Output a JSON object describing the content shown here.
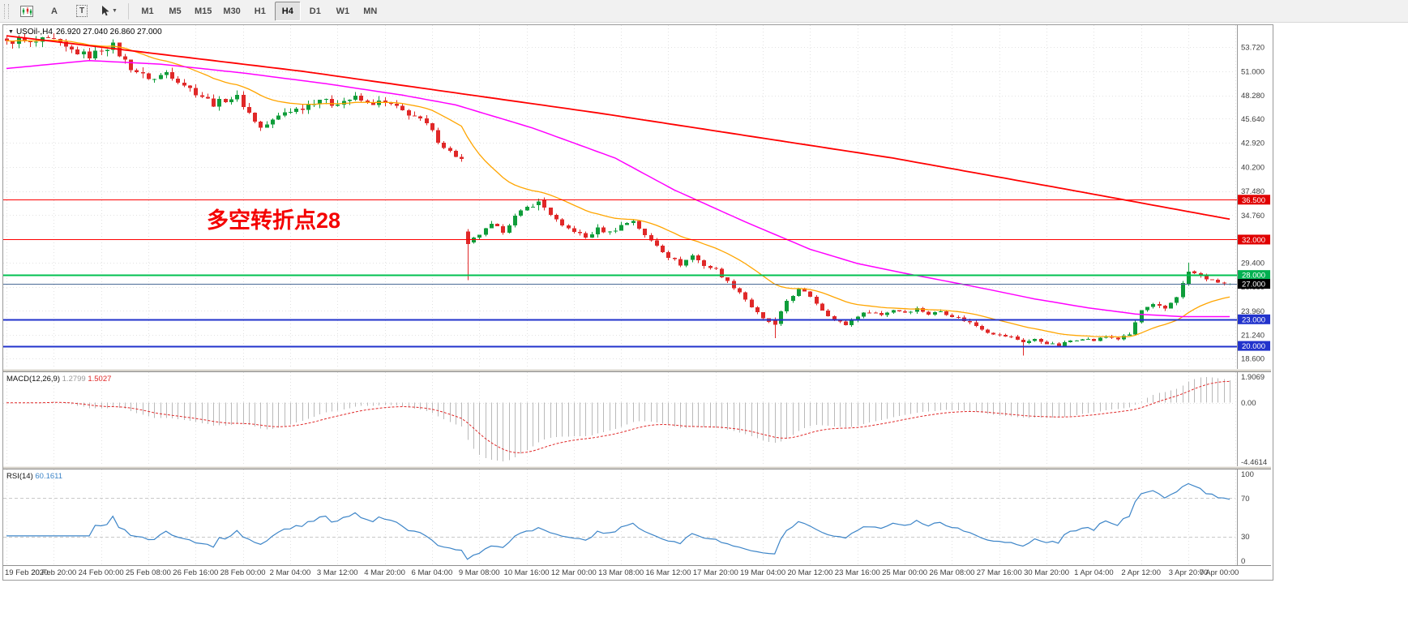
{
  "toolbar": {
    "a_label": "A",
    "t_label": "T",
    "timeframes": [
      {
        "label": "M1",
        "active": false
      },
      {
        "label": "M5",
        "active": false
      },
      {
        "label": "M15",
        "active": false
      },
      {
        "label": "M30",
        "active": false
      },
      {
        "label": "H1",
        "active": false
      },
      {
        "label": "H4",
        "active": true
      },
      {
        "label": "D1",
        "active": false
      },
      {
        "label": "W1",
        "active": false
      },
      {
        "label": "MN",
        "active": false
      }
    ]
  },
  "quote": {
    "icon": "▼",
    "symbol_tf": "USOil-,H4",
    "ohlc": "26.920 27.040 26.860 27.000"
  },
  "annotation": {
    "text": "多空转折点28",
    "color": "#f40000"
  },
  "colors": {
    "up": "#0f9d3a",
    "down": "#e02828",
    "ma_fast": "#ffa500",
    "ma_mid": "#ff00ff",
    "ma_slow": "#ff0000",
    "macd_hist": "#b9b9b9",
    "macd_signal": "#e02828",
    "rsi": "#3d85c8",
    "grid": "#e2e2e2",
    "axis_text": "#3c3c3c"
  },
  "chart_data": {
    "type": "candlestick",
    "symbol": "USOil-",
    "timeframe": "H4",
    "title": "USOil-,H4 26.920 27.040 26.860 27.000",
    "ohlc_current": {
      "open": "26.920",
      "high": "27.040",
      "low": "26.860",
      "close": "27.000"
    },
    "candle_count": 208,
    "candles_per_label": 8,
    "price_range": {
      "max": 56.2,
      "min": 17.4
    },
    "price_axis_ticks": [
      "53.720",
      "51.000",
      "48.280",
      "45.640",
      "42.920",
      "40.200",
      "37.480",
      "34.760",
      "32.040",
      "29.400",
      "26.680",
      "23.960",
      "21.240",
      "18.600"
    ],
    "time_labels": [
      "19 Feb 2020",
      "20 Feb 20:00",
      "24 Feb 00:00",
      "25 Feb 08:00",
      "26 Feb 16:00",
      "28 Feb 00:00",
      "2 Mar 04:00",
      "3 Mar 12:00",
      "4 Mar 20:00",
      "6 Mar 04:00",
      "9 Mar 08:00",
      "10 Mar 16:00",
      "12 Mar 00:00",
      "13 Mar 08:00",
      "16 Mar 12:00",
      "17 Mar 20:00",
      "19 Mar 04:00",
      "20 Mar 12:00",
      "23 Mar 16:00",
      "25 Mar 00:00",
      "26 Mar 08:00",
      "27 Mar 16:00",
      "30 Mar 20:00",
      "1 Apr 04:00",
      "2 Apr 12:00",
      "3 Apr 20:00",
      "7 Apr 00:00"
    ],
    "close_anchors": [
      [
        0,
        54.2
      ],
      [
        2,
        54.6
      ],
      [
        4,
        54.1
      ],
      [
        6,
        54.5
      ],
      [
        8,
        54.4
      ],
      [
        10,
        53.6
      ],
      [
        12,
        53.1
      ],
      [
        14,
        52.7
      ],
      [
        16,
        53.5
      ],
      [
        18,
        53.9
      ],
      [
        19,
        52.9
      ],
      [
        21,
        51.4
      ],
      [
        23,
        50.5
      ],
      [
        25,
        50.1
      ],
      [
        27,
        50.9
      ],
      [
        29,
        50.0
      ],
      [
        31,
        49.0
      ],
      [
        33,
        48.2
      ],
      [
        35,
        47.3
      ],
      [
        37,
        47.8
      ],
      [
        39,
        48.1
      ],
      [
        41,
        46.3
      ],
      [
        43,
        44.6
      ],
      [
        45,
        45.4
      ],
      [
        47,
        46.4
      ],
      [
        50,
        46.9
      ],
      [
        53,
        47.9
      ],
      [
        55,
        47.3
      ],
      [
        57,
        47.7
      ],
      [
        59,
        48.0
      ],
      [
        61,
        47.3
      ],
      [
        63,
        47.5
      ],
      [
        65,
        47.2
      ],
      [
        67,
        46.5
      ],
      [
        69,
        45.9
      ],
      [
        71,
        45.0
      ],
      [
        73,
        43.2
      ],
      [
        75,
        41.9
      ],
      [
        77,
        41.0
      ],
      [
        78,
        31.5
      ],
      [
        80,
        32.6
      ],
      [
        82,
        33.6
      ],
      [
        84,
        33.0
      ],
      [
        86,
        34.6
      ],
      [
        88,
        35.6
      ],
      [
        90,
        36.3
      ],
      [
        92,
        34.9
      ],
      [
        94,
        33.4
      ],
      [
        96,
        33.0
      ],
      [
        98,
        32.2
      ],
      [
        100,
        33.2
      ],
      [
        102,
        32.8
      ],
      [
        104,
        33.6
      ],
      [
        106,
        34.2
      ],
      [
        108,
        32.4
      ],
      [
        110,
        31.4
      ],
      [
        112,
        30.1
      ],
      [
        114,
        29.2
      ],
      [
        116,
        30.2
      ],
      [
        118,
        29.1
      ],
      [
        120,
        28.6
      ],
      [
        122,
        27.2
      ],
      [
        124,
        26.1
      ],
      [
        126,
        24.4
      ],
      [
        128,
        23.0
      ],
      [
        130,
        22.4
      ],
      [
        132,
        25.1
      ],
      [
        134,
        26.4
      ],
      [
        136,
        25.6
      ],
      [
        138,
        24.1
      ],
      [
        140,
        22.9
      ],
      [
        142,
        22.4
      ],
      [
        144,
        23.4
      ],
      [
        146,
        23.9
      ],
      [
        148,
        23.5
      ],
      [
        150,
        24.1
      ],
      [
        152,
        23.8
      ],
      [
        154,
        24.2
      ],
      [
        156,
        23.6
      ],
      [
        158,
        23.9
      ],
      [
        160,
        23.4
      ],
      [
        162,
        22.9
      ],
      [
        164,
        22.3
      ],
      [
        166,
        21.6
      ],
      [
        168,
        21.2
      ],
      [
        170,
        21.0
      ],
      [
        172,
        20.4
      ],
      [
        174,
        20.7
      ],
      [
        176,
        20.3
      ],
      [
        178,
        20.0
      ],
      [
        180,
        20.6
      ],
      [
        182,
        20.9
      ],
      [
        184,
        20.6
      ],
      [
        186,
        21.1
      ],
      [
        188,
        20.8
      ],
      [
        190,
        21.3
      ],
      [
        192,
        24.0
      ],
      [
        194,
        24.6
      ],
      [
        196,
        24.2
      ],
      [
        198,
        25.6
      ],
      [
        200,
        28.4
      ],
      [
        202,
        27.9
      ],
      [
        204,
        27.3
      ],
      [
        206,
        27.1
      ],
      [
        207,
        27.0
      ]
    ],
    "candle_overrides": {
      "78": [
        32.9,
        33.2,
        27.4,
        31.5
      ],
      "90": [
        35.9,
        36.6,
        35.3,
        36.3
      ],
      "130": [
        23.0,
        23.2,
        20.9,
        22.4
      ],
      "172": [
        20.7,
        20.9,
        18.9,
        20.4
      ],
      "200": [
        27.0,
        29.4,
        26.8,
        28.4
      ],
      "207": [
        26.92,
        27.04,
        26.86,
        27.0
      ]
    },
    "ma_fast_period": 21,
    "ma_mid_anchors": [
      [
        0,
        51.3
      ],
      [
        14,
        52.2
      ],
      [
        26,
        51.8
      ],
      [
        40,
        50.8
      ],
      [
        54,
        49.6
      ],
      [
        67,
        48.3
      ],
      [
        76,
        47.2
      ],
      [
        89,
        44.6
      ],
      [
        103,
        41.2
      ],
      [
        113,
        37.6
      ],
      [
        125,
        34.0
      ],
      [
        136,
        30.9
      ],
      [
        144,
        29.3
      ],
      [
        152,
        28.2
      ],
      [
        163,
        26.8
      ],
      [
        174,
        25.3
      ],
      [
        183,
        24.3
      ],
      [
        191,
        23.6
      ],
      [
        199,
        23.3
      ],
      [
        207,
        23.3
      ]
    ],
    "ma_slow_anchors": [
      [
        0,
        55.0
      ],
      [
        50,
        51.0
      ],
      [
        100,
        46.3
      ],
      [
        150,
        41.2
      ],
      [
        180,
        37.6
      ],
      [
        207,
        34.3
      ]
    ],
    "h_lines": [
      {
        "price": 36.5,
        "label": "36.500",
        "color": "#ff0000",
        "width": 1.4,
        "badge": "#e00000"
      },
      {
        "price": 32.0,
        "label": "32.000",
        "color": "#ff0000",
        "width": 1.4,
        "badge": "#e00000"
      },
      {
        "price": 28.0,
        "label": "28.000",
        "color": "#00c050",
        "width": 1.6,
        "badge": "#00b050"
      },
      {
        "price": 27.0,
        "label": "27.000",
        "color": "#4a6a96",
        "width": 1.2,
        "badge": "#000000"
      },
      {
        "price": 23.0,
        "label": "23.000",
        "color": "#2233cc",
        "width": 1.6,
        "badge": "#2233cc"
      },
      {
        "price": 20.0,
        "label": "20.000",
        "color": "#2233cc",
        "width": 1.6,
        "badge": "#2233cc"
      }
    ],
    "macd": {
      "label": "MACD(12,26,9)",
      "value_main": "1.2799",
      "value_signal": "1.5027",
      "axis_max": "1.9069",
      "axis_zero": "0.00",
      "axis_min": "-4.4614",
      "params": [
        12,
        26,
        9
      ]
    },
    "rsi": {
      "label": "RSI(14)",
      "value": "60.1611",
      "axis": [
        "100",
        "70",
        "30",
        "0"
      ],
      "levels": [
        70,
        30
      ],
      "period": 14
    }
  }
}
